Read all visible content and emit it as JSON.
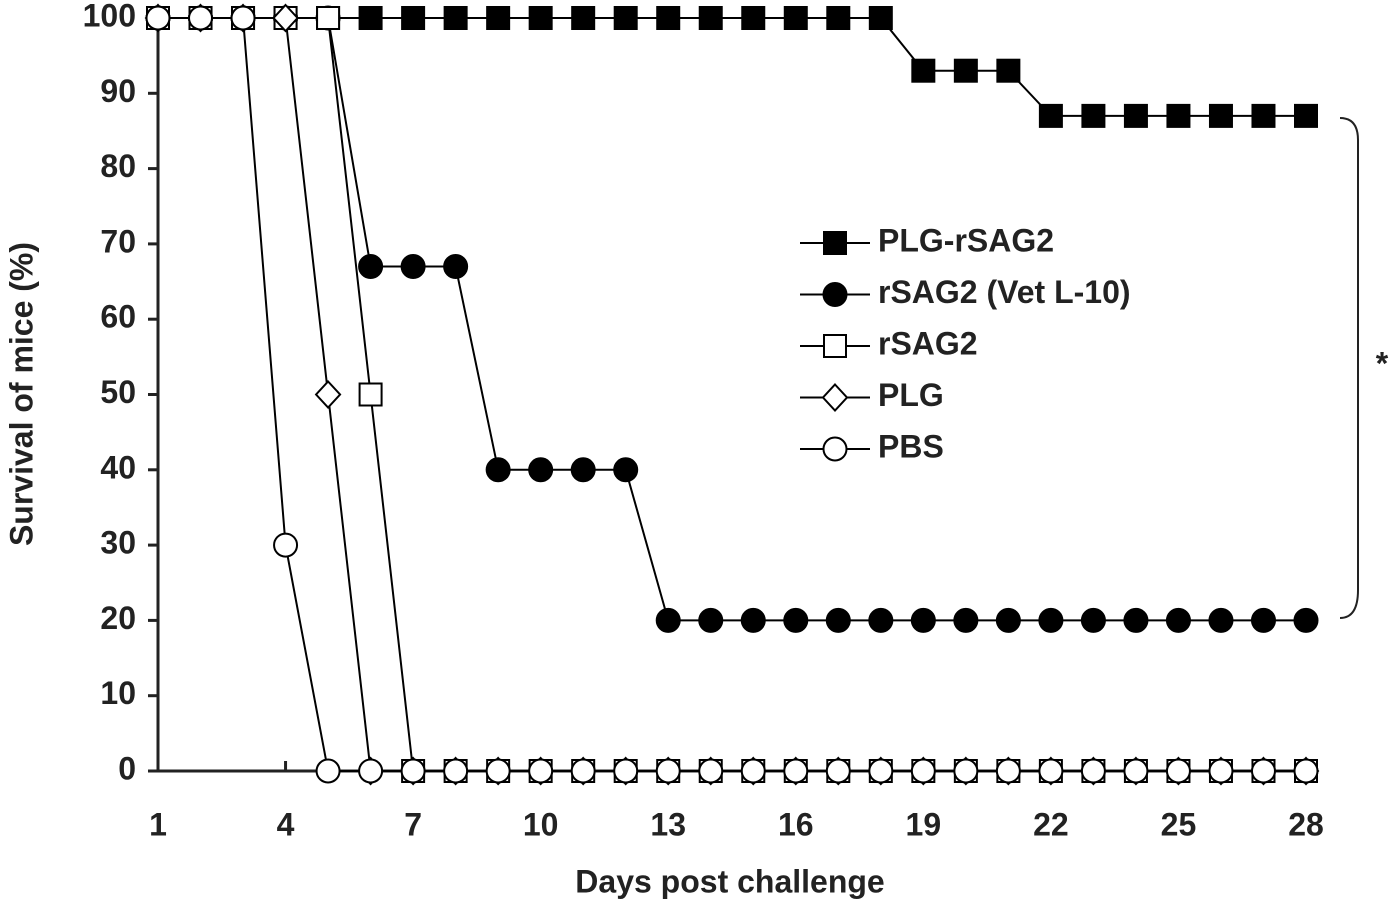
{
  "chart_data": {
    "type": "line",
    "xlabel": "Days post challenge",
    "ylabel": "Survival of mice (%)",
    "x": [
      1,
      2,
      3,
      4,
      5,
      6,
      7,
      8,
      9,
      10,
      11,
      12,
      13,
      14,
      15,
      16,
      17,
      18,
      19,
      20,
      21,
      22,
      23,
      24,
      25,
      26,
      27,
      28
    ],
    "xlim": [
      1,
      28
    ],
    "xticks": [
      1,
      4,
      7,
      10,
      13,
      16,
      19,
      22,
      25,
      28
    ],
    "ylim": [
      0,
      100
    ],
    "yticks": [
      0,
      10,
      20,
      30,
      40,
      50,
      60,
      70,
      80,
      90,
      100
    ],
    "legend": "right",
    "annotation": "*",
    "series": [
      {
        "name": "PLG-rSAG2",
        "color": "#000000",
        "marker": "square",
        "filled": true,
        "values": [
          100,
          100,
          100,
          100,
          100,
          100,
          100,
          100,
          100,
          100,
          100,
          100,
          100,
          100,
          100,
          100,
          100,
          100,
          93,
          93,
          93,
          87,
          87,
          87,
          87,
          87,
          87,
          87
        ]
      },
      {
        "name": "rSAG2 (Vet L-10)",
        "color": "#000000",
        "marker": "circle",
        "filled": true,
        "values": [
          100,
          100,
          100,
          100,
          100,
          67,
          67,
          67,
          40,
          40,
          40,
          40,
          20,
          20,
          20,
          20,
          20,
          20,
          20,
          20,
          20,
          20,
          20,
          20,
          20,
          20,
          20,
          20
        ]
      },
      {
        "name": "rSAG2",
        "color": "#000000",
        "marker": "square",
        "filled": false,
        "values": [
          100,
          100,
          100,
          100,
          100,
          50,
          0,
          0,
          0,
          0,
          0,
          0,
          0,
          0,
          0,
          0,
          0,
          0,
          0,
          0,
          0,
          0,
          0,
          0,
          0,
          0,
          0,
          0
        ]
      },
      {
        "name": "PLG",
        "color": "#000000",
        "marker": "diamond",
        "filled": false,
        "values": [
          100,
          100,
          100,
          100,
          50,
          0,
          0,
          0,
          0,
          0,
          0,
          0,
          0,
          0,
          0,
          0,
          0,
          0,
          0,
          0,
          0,
          0,
          0,
          0,
          0,
          0,
          0,
          0
        ]
      },
      {
        "name": "PBS",
        "color": "#000000",
        "marker": "circle",
        "filled": false,
        "values": [
          100,
          100,
          100,
          30,
          0,
          0,
          0,
          0,
          0,
          0,
          0,
          0,
          0,
          0,
          0,
          0,
          0,
          0,
          0,
          0,
          0,
          0,
          0,
          0,
          0,
          0,
          0,
          0
        ]
      }
    ]
  }
}
